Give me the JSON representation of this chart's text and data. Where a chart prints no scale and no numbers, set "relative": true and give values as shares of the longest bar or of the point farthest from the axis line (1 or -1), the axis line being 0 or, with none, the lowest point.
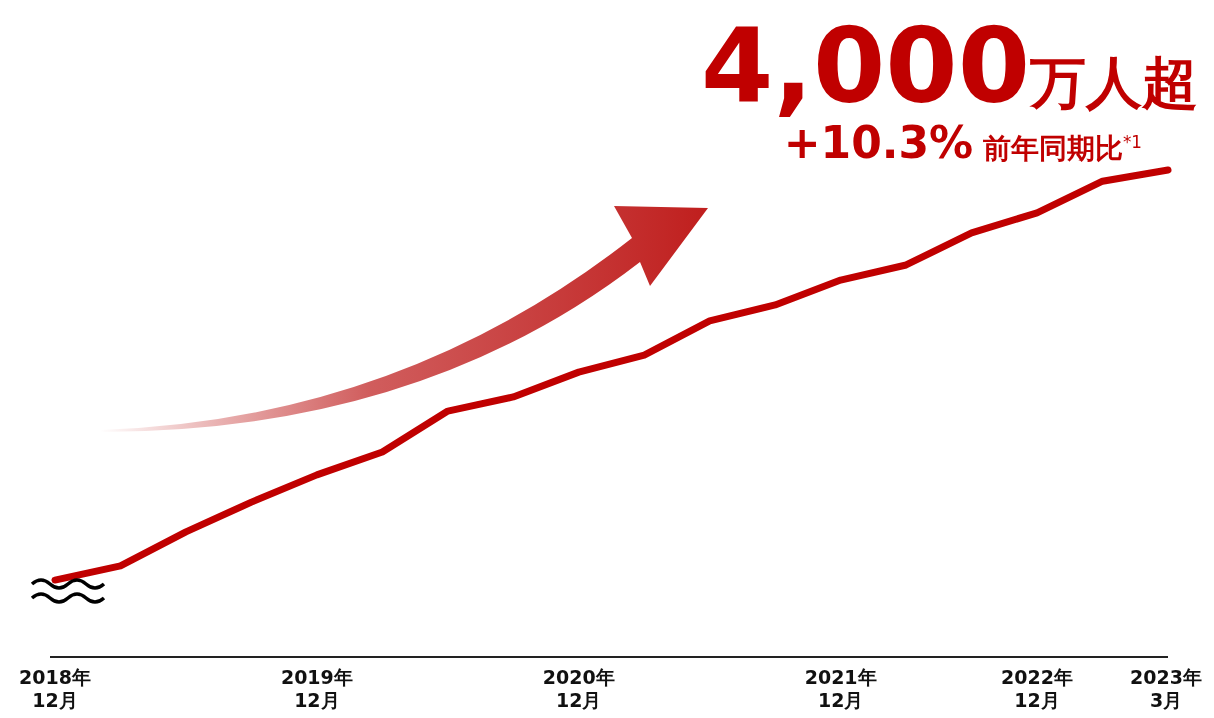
{
  "chart_data": {
    "type": "line",
    "title": "4,000万人超",
    "subtitle": "+10.3% 前年同期比$^{*1}$",
    "relative": true,
    "marker": "none",
    "line_style": "solid",
    "categories": [
      "2018年\n12月",
      null,
      null,
      null,
      "2019年\n12月",
      null,
      null,
      null,
      "2020年\n12月",
      null,
      null,
      null,
      "2021年\n12月",
      null,
      null,
      "2022年\n12月",
      null,
      "2023年\n3月"
    ],
    "series": [
      {
        "color": "#c00000",
        "values": [
          0.158,
          0.187,
          0.257,
          0.318,
          0.374,
          0.421,
          0.505,
          0.534,
          0.585,
          0.62,
          0.69,
          0.723,
          0.774,
          0.805,
          0.871,
          0.912,
          0.977,
          1
        ]
      }
    ]
  }
}
